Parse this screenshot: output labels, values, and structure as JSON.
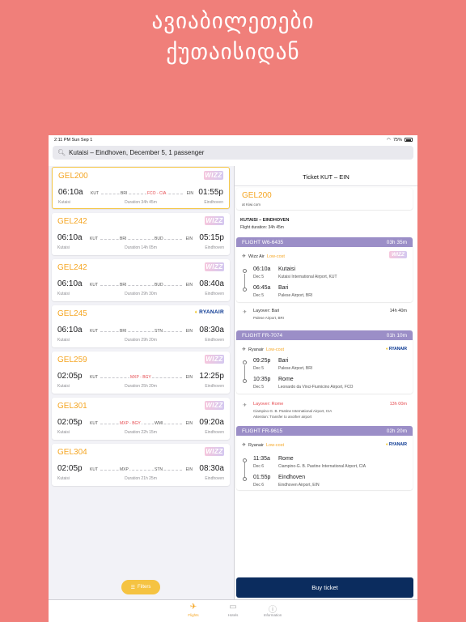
{
  "headline": {
    "line1": "ავიაბილეთები",
    "line2": "ქუთაისიდან"
  },
  "statusbar": {
    "time": "2:11 PM   Sun Sep 1",
    "battery": "75%"
  },
  "search": {
    "query": "Kutaisi – Eindhoven, December 5, 1 passenger"
  },
  "results": [
    {
      "price": "GEL200",
      "airline": "wizz",
      "dep": "06:10a",
      "arr": "01:55p",
      "from_code": "KUT",
      "stop1": "BRI",
      "stop2": "FCO - CIA",
      "to_code": "EIN",
      "from": "Kutaisi",
      "to": "Eindhoven",
      "duration": "Duration 34h 45m",
      "stop1_red": false,
      "stop2_red": true
    },
    {
      "price": "GEL242",
      "airline": "wizz",
      "dep": "06:10a",
      "arr": "05:15p",
      "from_code": "KUT",
      "stop1": "BRI",
      "stop2": "BUD",
      "to_code": "EIN",
      "from": "Kutaisi",
      "to": "Eindhoven",
      "duration": "Duration 14h 05m",
      "stop1_red": false,
      "stop2_red": false
    },
    {
      "price": "GEL242",
      "airline": "wizz",
      "dep": "06:10a",
      "arr": "08:40a",
      "from_code": "KUT",
      "stop1": "BRI",
      "stop2": "BUD",
      "to_code": "EIN",
      "from": "Kutaisi",
      "to": "Eindhoven",
      "duration": "Duration 29h 30m",
      "stop1_red": false,
      "stop2_red": false
    },
    {
      "price": "GEL245",
      "airline": "ryanair",
      "dep": "06:10a",
      "arr": "08:30a",
      "from_code": "KUT",
      "stop1": "BRI",
      "stop2": "STN",
      "to_code": "EIN",
      "from": "Kutaisi",
      "to": "Eindhoven",
      "duration": "Duration 29h 20m",
      "stop1_red": false,
      "stop2_red": false
    },
    {
      "price": "GEL259",
      "airline": "wizz",
      "dep": "02:05p",
      "arr": "12:25p",
      "from_code": "KUT",
      "stop1": "MXP - BGY",
      "stop2": "",
      "to_code": "EIN",
      "from": "Kutaisi",
      "to": "Eindhoven",
      "duration": "Duration 25h 20m",
      "stop1_red": true,
      "stop2_red": false
    },
    {
      "price": "GEL301",
      "airline": "wizz",
      "dep": "02:05p",
      "arr": "09:20a",
      "from_code": "KUT",
      "stop1": "MXP - BGY",
      "stop2": "WMI",
      "to_code": "EIN",
      "from": "Kutaisi",
      "to": "Eindhoven",
      "duration": "Duration 22h 15m",
      "stop1_red": true,
      "stop2_red": false
    },
    {
      "price": "GEL304",
      "airline": "wizz",
      "dep": "02:05p",
      "arr": "08:30a",
      "from_code": "KUT",
      "stop1": "MXP",
      "stop2": "STN",
      "to_code": "EIN",
      "from": "Kutaisi",
      "to": "Eindhoven",
      "duration": "Duration 21h 25m",
      "stop1_red": false,
      "stop2_red": false
    }
  ],
  "logos": {
    "wizz": "WIZZ",
    "ryanair": "RYANAIR"
  },
  "filters_label": "Filters",
  "ticket": {
    "title": "Ticket KUT – EIN",
    "price": "GEL200",
    "source": "at Kiwi.com",
    "citypair": "KUTAISI – EINDHOVEN",
    "duration": "Flight duration: 34h 45m",
    "segments": [
      {
        "flight": "FLIGHT W6-6435",
        "time": "03h 35m",
        "airline": "Wizz Air",
        "lowcost": "Low-cost",
        "logo": "wizz",
        "dep_time": "06:10a",
        "dep_date": "Dec 5",
        "dep_city": "Kutaisi",
        "dep_airport": "Kutaisi International Airport, KUT",
        "arr_time": "06:45a",
        "arr_date": "Dec 5",
        "arr_city": "Bari",
        "arr_airport": "Palese Airport, BRI"
      },
      {
        "flight": "FLIGHT FR-7074",
        "time": "01h 10m",
        "airline": "Ryanair",
        "lowcost": "Low-cost",
        "logo": "ryanair",
        "dep_time": "09:25p",
        "dep_date": "Dec 5",
        "dep_city": "Bari",
        "dep_airport": "Palese Airport, BRI",
        "arr_time": "10:35p",
        "arr_date": "Dec 5",
        "arr_city": "Rome",
        "arr_airport": "Leonardo da Vinci-Fiumicino Airport, FCO"
      },
      {
        "flight": "FLIGHT FR-9615",
        "time": "02h 20m",
        "airline": "Ryanair",
        "lowcost": "Low-cost",
        "logo": "ryanair",
        "dep_time": "11:35a",
        "dep_date": "Dec 6",
        "dep_city": "Rome",
        "dep_airport": "Ciampino-G. B. Pastine International Airport, CIA",
        "arr_time": "01:55p",
        "arr_date": "Dec 6",
        "arr_city": "Eindhoven",
        "arr_airport": "Eindhoven Airport, EIN"
      }
    ],
    "layovers": [
      {
        "label": "Layover: Bari",
        "place": "Palese Airport, BRI",
        "note": "",
        "duration": "14h 40m"
      },
      {
        "label": "Layover: Rome",
        "place": "Ciampino-G. B. Pastine International Airport, CIA",
        "note": "Attention: Transfer to another airport",
        "duration": "13h 00m"
      }
    ],
    "buy_label": "Buy ticket"
  },
  "tabs": [
    {
      "label": "Flights",
      "icon": "plane-icon"
    },
    {
      "label": "Hotels",
      "icon": "bed-icon"
    },
    {
      "label": "Information",
      "icon": "info-icon"
    }
  ],
  "colors": {
    "background": "#f07f7a",
    "price": "#f5a623",
    "segment_header": "#9b8ec7",
    "buy_button": "#0b2c5e",
    "warning": "#e5484d"
  }
}
